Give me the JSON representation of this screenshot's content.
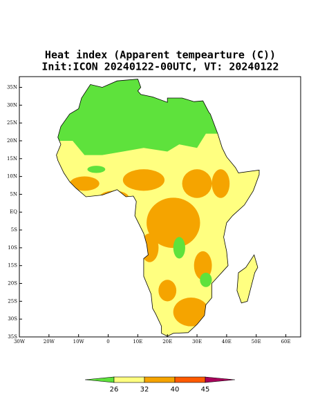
{
  "map": {
    "title": [
      "Heat index (Apparent tempearture (C))",
      "Init:ICON 20240122-00UTC, VT: 20240122"
    ],
    "xlim": [
      -30,
      65
    ],
    "ylim": [
      -35,
      38
    ],
    "xticks": [
      {
        "value": -30,
        "label": "30W"
      },
      {
        "value": -20,
        "label": "20W"
      },
      {
        "value": -10,
        "label": "10W"
      },
      0,
      {
        "value": 10,
        "label": "10E"
      },
      {
        "value": 20,
        "label": "20E"
      },
      {
        "value": 30,
        "label": "30E"
      },
      {
        "value": 40,
        "label": "40E"
      },
      {
        "value": 50,
        "label": "50E"
      },
      {
        "value": 60,
        "label": "60E"
      }
    ],
    "yticks": [
      {
        "value": 35,
        "label": "35N"
      },
      {
        "value": 30,
        "label": "30N"
      },
      {
        "value": 25,
        "label": "25N"
      },
      {
        "value": 20,
        "label": "20N"
      },
      {
        "value": 15,
        "label": "15N"
      },
      {
        "value": 10,
        "label": "10N"
      },
      {
        "value": 5,
        "label": "5N"
      },
      {
        "value": 0,
        "label": "EQ"
      },
      {
        "value": -5,
        "label": "5S"
      },
      {
        "value": -10,
        "label": "10S"
      },
      {
        "value": -15,
        "label": "15S"
      },
      {
        "value": -20,
        "label": "20S"
      },
      {
        "value": -25,
        "label": "25S"
      },
      {
        "value": -30,
        "label": "30S"
      },
      {
        "value": -35,
        "label": "35S"
      }
    ],
    "colorbar": {
      "levels": [
        26,
        32,
        40,
        45
      ],
      "colors": [
        "#5ee23c",
        "#ffff80",
        "#f5a400",
        "#ff5a00",
        "#a8005a"
      ]
    }
  }
}
